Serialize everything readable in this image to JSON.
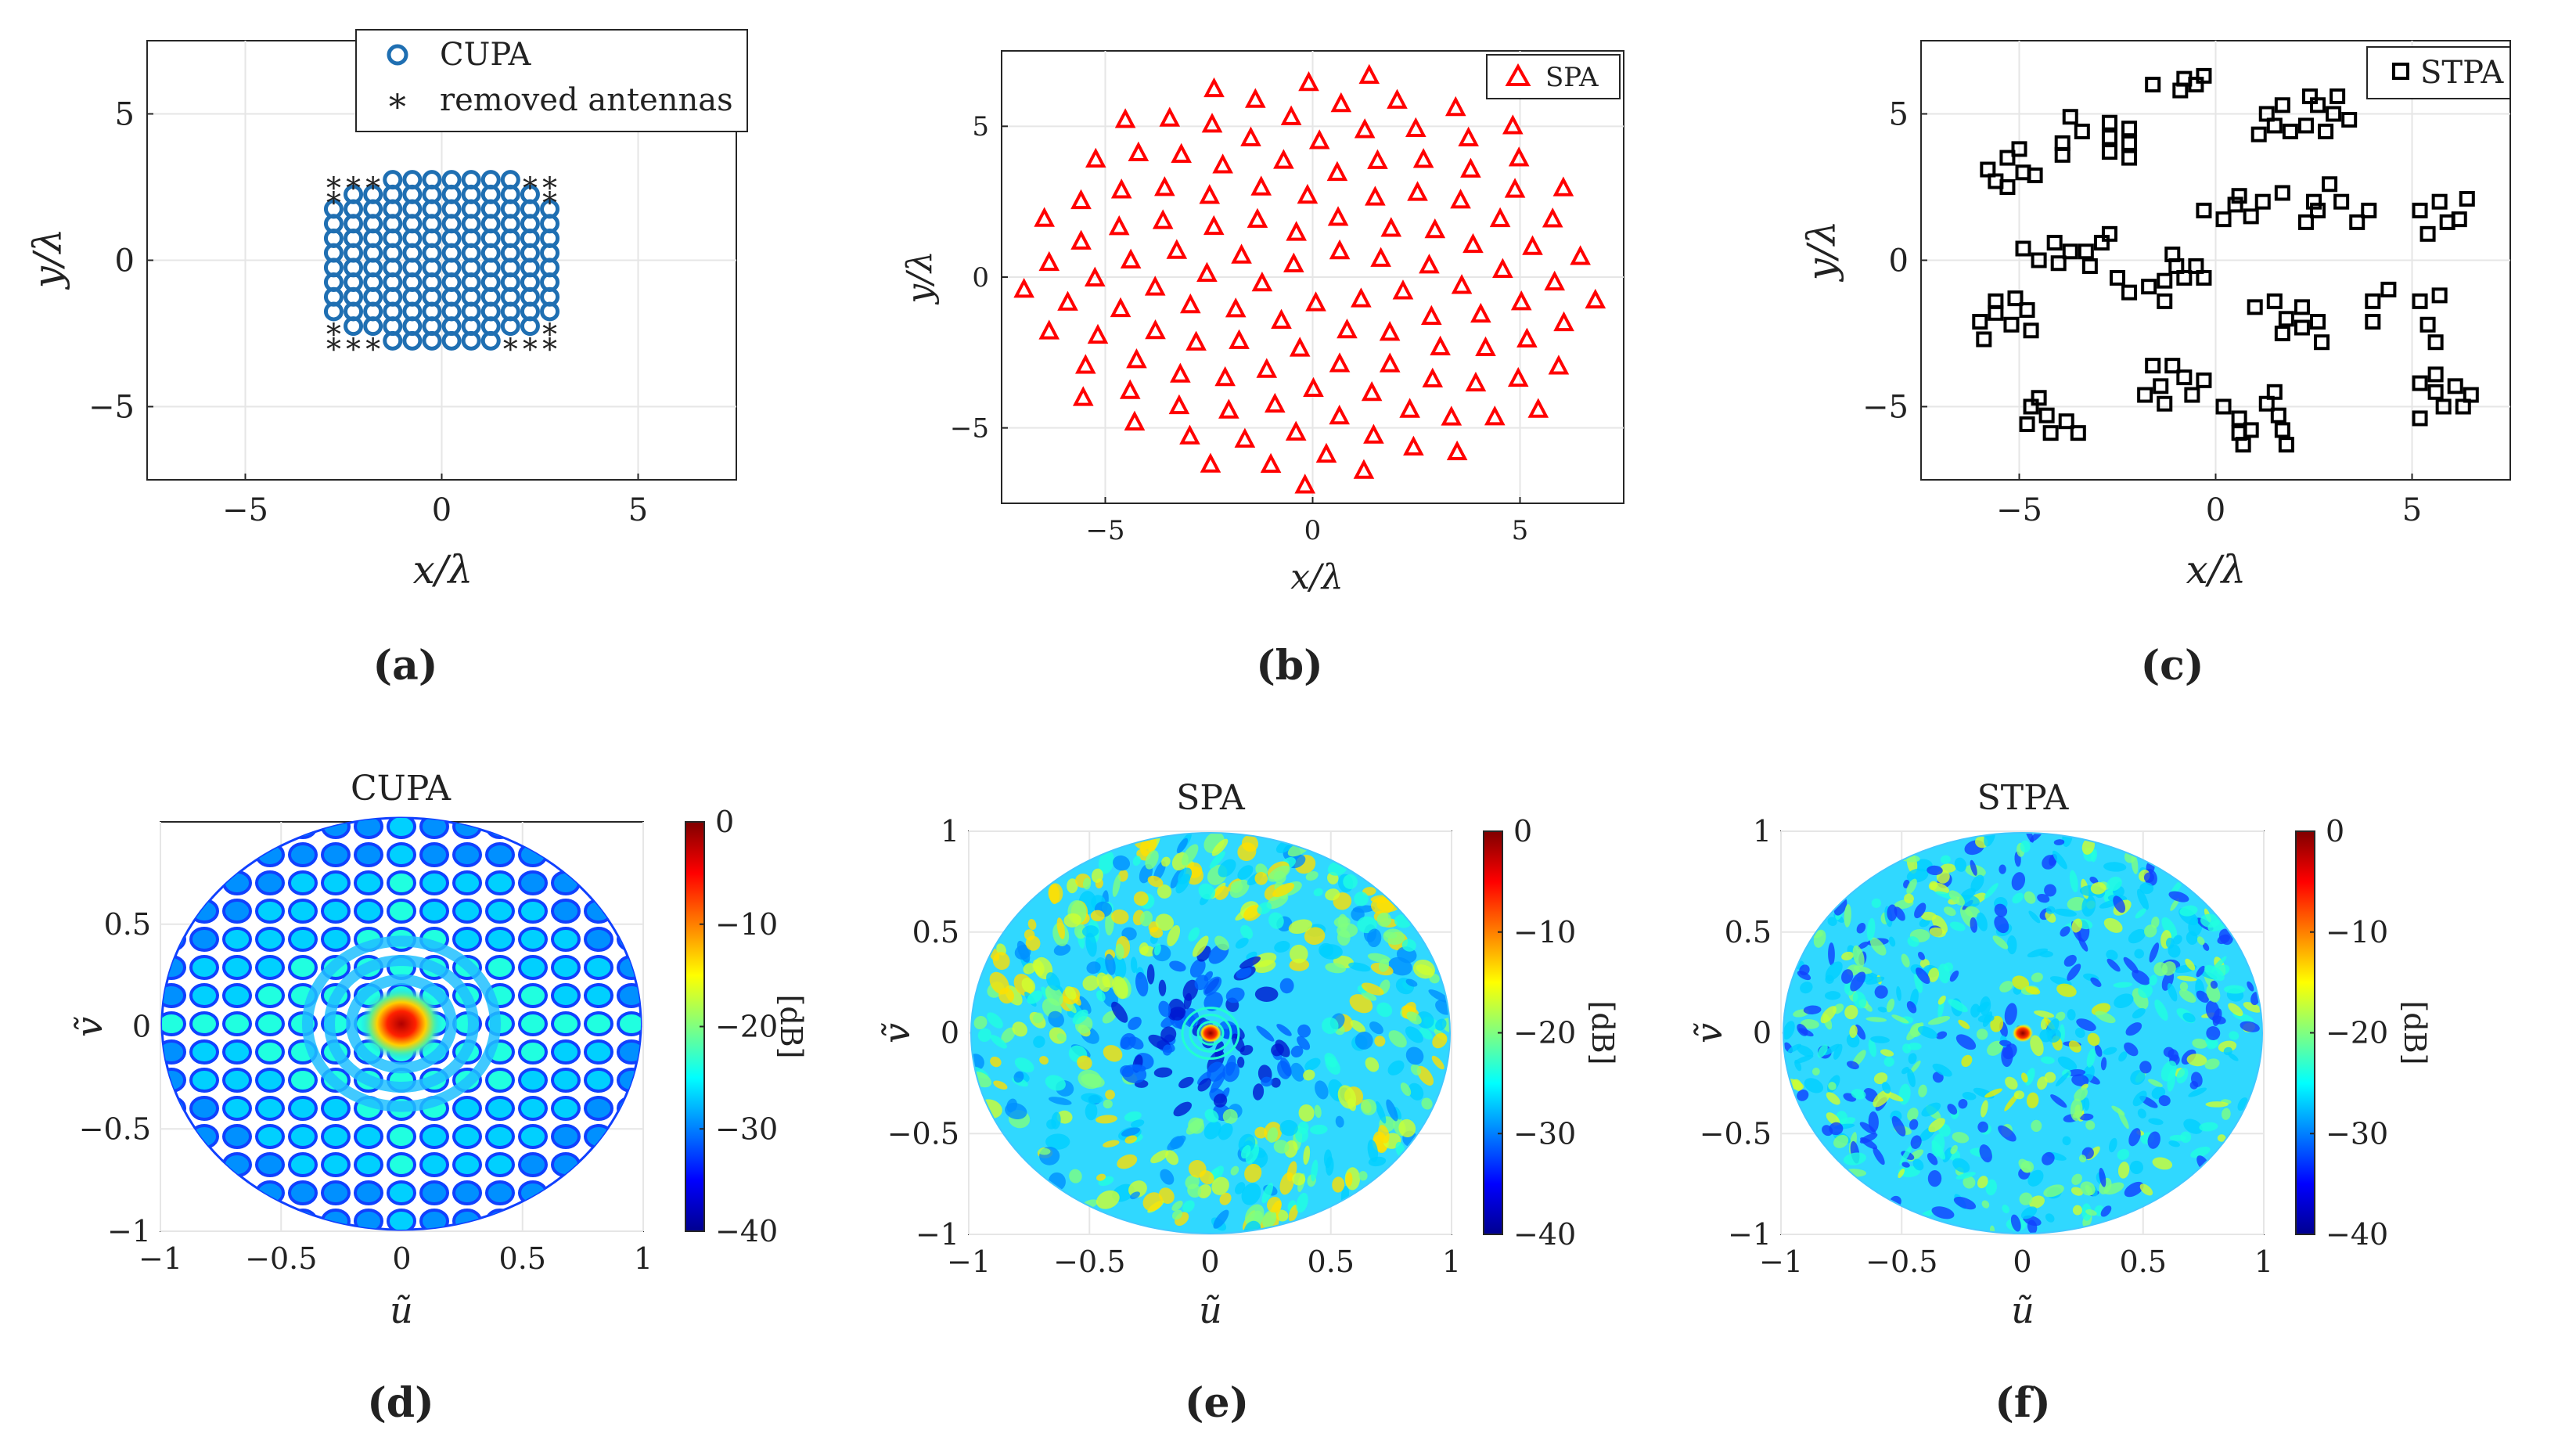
{
  "colors": {
    "cupa": "#1f6fb2",
    "spa": "#ff0000",
    "stpa": "#000000",
    "removed": "#000000",
    "axis": "#262626",
    "grid": "#e6e6e6"
  },
  "chart_data": [
    {
      "id": "a",
      "type": "scatter",
      "subfigure_label": "(a)",
      "xlabel": "x/λ",
      "ylabel": "y/λ",
      "xlim": [
        -7.5,
        7.5
      ],
      "ylim": [
        -7.5,
        7.5
      ],
      "xticks": [
        -5,
        0,
        5
      ],
      "yticks": [
        -5,
        0,
        5
      ],
      "grid": true,
      "legend_position": "top-right",
      "series": [
        {
          "name": "CUPA",
          "marker": "circle",
          "pattern": "grid",
          "x_start": -2.75,
          "x_step": 0.5,
          "x_count": 12,
          "y_start": -2.75,
          "y_step": 0.5,
          "y_count": 12,
          "omit": "removed-corners"
        },
        {
          "name": "removed antennas",
          "marker": "asterisk",
          "points": [
            [
              -2.75,
              2.75
            ],
            [
              -2.25,
              2.75
            ],
            [
              -1.75,
              2.75
            ],
            [
              -2.75,
              2.25
            ],
            [
              2.75,
              2.75
            ],
            [
              2.25,
              2.75
            ],
            [
              2.75,
              2.25
            ],
            [
              -2.75,
              -2.75
            ],
            [
              -2.25,
              -2.75
            ],
            [
              -1.75,
              -2.75
            ],
            [
              -2.75,
              -2.25
            ],
            [
              2.75,
              -2.75
            ],
            [
              2.25,
              -2.75
            ],
            [
              1.75,
              -2.75
            ],
            [
              2.75,
              -2.25
            ]
          ]
        }
      ]
    },
    {
      "id": "b",
      "type": "scatter",
      "subfigure_label": "(b)",
      "xlabel": "x/λ",
      "ylabel": "y/λ",
      "xlim": [
        -7.5,
        7.5
      ],
      "ylim": [
        -7.5,
        7.5
      ],
      "xticks": [
        -5,
        0,
        5
      ],
      "yticks": [
        -5,
        0,
        5
      ],
      "grid": true,
      "legend_position": "top-right",
      "series": [
        {
          "name": "SPA",
          "marker": "triangle",
          "pattern": "spiral",
          "count": 128,
          "max_radius": 7.0
        }
      ]
    },
    {
      "id": "c",
      "type": "scatter",
      "subfigure_label": "(c)",
      "xlabel": "x/λ",
      "ylabel": "y/λ",
      "xlim": [
        -7.5,
        7.5
      ],
      "ylim": [
        -7.5,
        7.5
      ],
      "xticks": [
        -5,
        0,
        5
      ],
      "yticks": [
        -5,
        0,
        5
      ],
      "grid": true,
      "legend_position": "top-right",
      "series": [
        {
          "name": "STPA",
          "marker": "square",
          "points": [
            [
              -5.8,
              3.1
            ],
            [
              -5.3,
              3.5
            ],
            [
              -4.9,
              3.0
            ],
            [
              -5.6,
              2.7
            ],
            [
              -5.0,
              3.8
            ],
            [
              -5.3,
              2.5
            ],
            [
              -4.6,
              2.9
            ],
            [
              -3.9,
              4.0
            ],
            [
              -3.7,
              4.9
            ],
            [
              -3.4,
              4.4
            ],
            [
              -3.9,
              3.6
            ],
            [
              -2.7,
              3.7
            ],
            [
              -2.7,
              4.2
            ],
            [
              -2.7,
              4.7
            ],
            [
              -2.2,
              3.5
            ],
            [
              -2.2,
              4.0
            ],
            [
              -2.2,
              4.5
            ],
            [
              -1.6,
              6.0
            ],
            [
              -0.8,
              6.2
            ],
            [
              -0.5,
              6.0
            ],
            [
              -0.9,
              5.8
            ],
            [
              -0.3,
              6.3
            ],
            [
              1.1,
              4.3
            ],
            [
              1.3,
              5.0
            ],
            [
              1.5,
              4.6
            ],
            [
              1.9,
              4.4
            ],
            [
              2.3,
              4.6
            ],
            [
              2.6,
              5.3
            ],
            [
              3.0,
              5.0
            ],
            [
              3.4,
              4.8
            ],
            [
              2.8,
              4.4
            ],
            [
              2.4,
              5.6
            ],
            [
              3.1,
              5.6
            ],
            [
              1.7,
              5.3
            ],
            [
              -0.3,
              1.7
            ],
            [
              0.2,
              1.4
            ],
            [
              0.5,
              1.9
            ],
            [
              0.9,
              1.5
            ],
            [
              1.2,
              2.0
            ],
            [
              0.6,
              2.2
            ],
            [
              1.7,
              2.3
            ],
            [
              2.3,
              1.3
            ],
            [
              2.6,
              1.7
            ],
            [
              2.9,
              2.6
            ],
            [
              3.2,
              2.0
            ],
            [
              3.6,
              1.3
            ],
            [
              3.9,
              1.7
            ],
            [
              2.5,
              2.0
            ],
            [
              5.2,
              1.7
            ],
            [
              5.7,
              2.0
            ],
            [
              5.9,
              1.3
            ],
            [
              5.4,
              0.9
            ],
            [
              6.2,
              1.4
            ],
            [
              6.4,
              2.1
            ],
            [
              -4.9,
              0.4
            ],
            [
              -4.5,
              0.0
            ],
            [
              -4.1,
              0.6
            ],
            [
              -3.7,
              0.3
            ],
            [
              -4.0,
              -0.1
            ],
            [
              -3.3,
              0.3
            ],
            [
              -2.9,
              0.6
            ],
            [
              -3.2,
              -0.2
            ],
            [
              -2.7,
              0.9
            ],
            [
              -2.5,
              -0.6
            ],
            [
              -2.2,
              -1.1
            ],
            [
              -1.7,
              -0.9
            ],
            [
              -1.3,
              -0.7
            ],
            [
              -0.8,
              -0.6
            ],
            [
              -0.3,
              -0.6
            ],
            [
              -0.5,
              -0.2
            ],
            [
              -1.3,
              -1.4
            ],
            [
              -1.0,
              -0.2
            ],
            [
              -1.1,
              0.2
            ],
            [
              -6.0,
              -2.1
            ],
            [
              -5.6,
              -1.8
            ],
            [
              -5.2,
              -2.2
            ],
            [
              -4.8,
              -1.7
            ],
            [
              -5.1,
              -1.3
            ],
            [
              -5.6,
              -1.4
            ],
            [
              -4.7,
              -2.4
            ],
            [
              -5.9,
              -2.7
            ],
            [
              1.0,
              -1.6
            ],
            [
              1.5,
              -1.4
            ],
            [
              1.8,
              -2.0
            ],
            [
              2.2,
              -1.6
            ],
            [
              1.7,
              -2.5
            ],
            [
              2.2,
              -2.3
            ],
            [
              2.6,
              -2.1
            ],
            [
              2.7,
              -2.8
            ],
            [
              4.0,
              -1.4
            ],
            [
              4.4,
              -1.0
            ],
            [
              4.0,
              -2.1
            ],
            [
              5.2,
              -1.4
            ],
            [
              5.4,
              -2.2
            ],
            [
              5.7,
              -1.2
            ],
            [
              5.6,
              -2.8
            ],
            [
              -4.7,
              -5.0
            ],
            [
              -4.3,
              -5.3
            ],
            [
              -3.8,
              -5.5
            ],
            [
              -4.8,
              -5.6
            ],
            [
              -4.2,
              -5.9
            ],
            [
              -3.5,
              -5.9
            ],
            [
              -4.5,
              -4.7
            ],
            [
              -1.8,
              -4.6
            ],
            [
              -1.4,
              -4.3
            ],
            [
              -1.1,
              -3.6
            ],
            [
              -0.8,
              -4.0
            ],
            [
              -1.3,
              -4.9
            ],
            [
              -0.6,
              -4.6
            ],
            [
              -0.3,
              -4.1
            ],
            [
              -1.6,
              -3.6
            ],
            [
              0.2,
              -5.0
            ],
            [
              0.6,
              -5.4
            ],
            [
              0.9,
              -5.8
            ],
            [
              1.3,
              -4.9
            ],
            [
              1.6,
              -5.3
            ],
            [
              1.7,
              -5.8
            ],
            [
              0.6,
              -5.9
            ],
            [
              1.8,
              -6.3
            ],
            [
              0.7,
              -6.3
            ],
            [
              1.5,
              -4.5
            ],
            [
              5.2,
              -4.2
            ],
            [
              5.6,
              -4.5
            ],
            [
              6.1,
              -4.3
            ],
            [
              5.6,
              -3.9
            ],
            [
              5.8,
              -5.0
            ],
            [
              5.2,
              -5.4
            ],
            [
              6.3,
              -5.0
            ],
            [
              6.5,
              -4.6
            ]
          ]
        }
      ]
    },
    {
      "id": "d",
      "type": "heatmap",
      "subfigure_label": "(d)",
      "title": "CUPA",
      "xlabel": "ũ",
      "ylabel": "ṽ",
      "xlim": [
        -1,
        1
      ],
      "ylim": [
        -1,
        1
      ],
      "xticks": [
        "-1",
        "-0.5",
        "0",
        "0.5",
        "1"
      ],
      "yticks": [
        "-1",
        "-0.5",
        "0",
        "0.5"
      ],
      "colorbar": {
        "label": "[dB]",
        "min": -40,
        "max": 0,
        "ticks": [
          "0",
          "-10",
          "-20",
          "-30",
          "-40"
        ],
        "colormap": "jet"
      },
      "pattern": "uniform-lattice"
    },
    {
      "id": "e",
      "type": "heatmap",
      "subfigure_label": "(e)",
      "title": "SPA",
      "xlabel": "ũ",
      "ylabel": "ṽ",
      "xlim": [
        -1,
        1
      ],
      "ylim": [
        -1,
        1
      ],
      "xticks": [
        "-1",
        "-0.5",
        "0",
        "0.5",
        "1"
      ],
      "yticks": [
        "-1",
        "-0.5",
        "0",
        "0.5",
        "1"
      ],
      "colorbar": {
        "label": "[dB]",
        "min": -40,
        "max": 0,
        "ticks": [
          "0",
          "-10",
          "-20",
          "-30",
          "-40"
        ],
        "colormap": "jet"
      },
      "pattern": "spiral"
    },
    {
      "id": "f",
      "type": "heatmap",
      "subfigure_label": "(f)",
      "title": "STPA",
      "xlabel": "ũ",
      "ylabel": "ṽ",
      "xlim": [
        -1,
        1
      ],
      "ylim": [
        -1,
        1
      ],
      "xticks": [
        "-1",
        "-0.5",
        "0",
        "0.5",
        "1"
      ],
      "yticks": [
        "-1",
        "-0.5",
        "0",
        "0.5",
        "1"
      ],
      "colorbar": {
        "label": "[dB]",
        "min": -40,
        "max": 0,
        "ticks": [
          "0",
          "-10",
          "-20",
          "-30",
          "-40"
        ],
        "colormap": "jet"
      },
      "pattern": "random"
    }
  ]
}
